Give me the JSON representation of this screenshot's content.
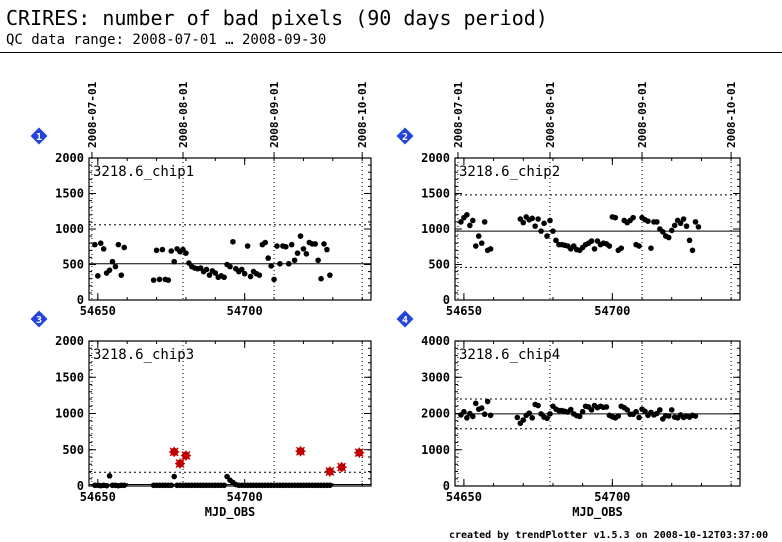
{
  "header": {
    "title": "CRIRES: number of bad pixels (90 days period)",
    "subtitle": "QC data range: 2008-07-01 … 2008-09-30"
  },
  "footer": {
    "credit": "created by trendPlotter v1.5.3 on 2008-10-12T03:37:00"
  },
  "colors": {
    "axis": "#000000",
    "point": "#000000",
    "outlier": "#c00000",
    "badge": "#2244dd"
  },
  "chart_data": [
    {
      "type": "scatter",
      "badge": "1",
      "label": "3218.6_chip1",
      "xlabel": "",
      "xlim": [
        54647,
        54743
      ],
      "ylim": [
        0,
        2000
      ],
      "yticks": [
        0,
        500,
        1000,
        1500,
        2000
      ],
      "xticks": [
        54650,
        54700
      ],
      "date_markers": [
        {
          "x": 54648,
          "label": "2008-07-01"
        },
        {
          "x": 54679,
          "label": "2008-08-01"
        },
        {
          "x": 54710,
          "label": "2008-09-01"
        },
        {
          "x": 54740,
          "label": "2008-10-01"
        }
      ],
      "mean": 510,
      "thresholds": [
        1060
      ],
      "points": [
        [
          54649,
          780
        ],
        [
          54650,
          340
        ],
        [
          54651,
          800
        ],
        [
          54652,
          720
        ],
        [
          54653,
          380
        ],
        [
          54654,
          420
        ],
        [
          54655,
          540
        ],
        [
          54656,
          470
        ],
        [
          54657,
          780
        ],
        [
          54658,
          350
        ],
        [
          54659,
          740
        ],
        [
          54669,
          280
        ],
        [
          54670,
          700
        ],
        [
          54671,
          290
        ],
        [
          54672,
          710
        ],
        [
          54673,
          290
        ],
        [
          54674,
          280
        ],
        [
          54675,
          690
        ],
        [
          54676,
          540
        ],
        [
          54677,
          720
        ],
        [
          54678,
          680
        ],
        [
          54679,
          710
        ],
        [
          54680,
          660
        ],
        [
          54681,
          520
        ],
        [
          54682,
          470
        ],
        [
          54683,
          450
        ],
        [
          54684,
          440
        ],
        [
          54685,
          450
        ],
        [
          54686,
          400
        ],
        [
          54687,
          430
        ],
        [
          54688,
          350
        ],
        [
          54689,
          410
        ],
        [
          54690,
          380
        ],
        [
          54691,
          320
        ],
        [
          54692,
          340
        ],
        [
          54693,
          320
        ],
        [
          54694,
          500
        ],
        [
          54695,
          470
        ],
        [
          54696,
          820
        ],
        [
          54697,
          440
        ],
        [
          54698,
          400
        ],
        [
          54699,
          430
        ],
        [
          54700,
          370
        ],
        [
          54701,
          760
        ],
        [
          54702,
          330
        ],
        [
          54703,
          400
        ],
        [
          54704,
          370
        ],
        [
          54705,
          350
        ],
        [
          54706,
          780
        ],
        [
          54707,
          810
        ],
        [
          54708,
          590
        ],
        [
          54709,
          480
        ],
        [
          54710,
          290
        ],
        [
          54711,
          760
        ],
        [
          54712,
          510
        ],
        [
          54713,
          760
        ],
        [
          54714,
          750
        ],
        [
          54715,
          510
        ],
        [
          54716,
          780
        ],
        [
          54717,
          560
        ],
        [
          54718,
          660
        ],
        [
          54719,
          900
        ],
        [
          54720,
          720
        ],
        [
          54721,
          650
        ],
        [
          54722,
          810
        ],
        [
          54723,
          790
        ],
        [
          54724,
          790
        ],
        [
          54725,
          560
        ],
        [
          54726,
          300
        ],
        [
          54727,
          790
        ],
        [
          54728,
          710
        ],
        [
          54729,
          350
        ]
      ],
      "outliers": []
    },
    {
      "type": "scatter",
      "badge": "2",
      "label": "3218.6_chip2",
      "xlabel": "",
      "xlim": [
        54647,
        54743
      ],
      "ylim": [
        0,
        2000
      ],
      "yticks": [
        0,
        500,
        1000,
        1500,
        2000
      ],
      "xticks": [
        54650,
        54700
      ],
      "date_markers": [
        {
          "x": 54648,
          "label": "2008-07-01"
        },
        {
          "x": 54679,
          "label": "2008-08-01"
        },
        {
          "x": 54710,
          "label": "2008-09-01"
        },
        {
          "x": 54740,
          "label": "2008-10-01"
        }
      ],
      "mean": 970,
      "thresholds": [
        1480,
        460
      ],
      "points": [
        [
          54649,
          1100
        ],
        [
          54650,
          1160
        ],
        [
          54651,
          1200
        ],
        [
          54652,
          1050
        ],
        [
          54653,
          1120
        ],
        [
          54654,
          760
        ],
        [
          54655,
          900
        ],
        [
          54656,
          800
        ],
        [
          54657,
          1100
        ],
        [
          54658,
          700
        ],
        [
          54659,
          720
        ],
        [
          54669,
          1140
        ],
        [
          54670,
          1090
        ],
        [
          54671,
          1170
        ],
        [
          54672,
          1130
        ],
        [
          54673,
          1150
        ],
        [
          54674,
          1040
        ],
        [
          54675,
          1140
        ],
        [
          54676,
          970
        ],
        [
          54677,
          1080
        ],
        [
          54678,
          900
        ],
        [
          54679,
          1120
        ],
        [
          54680,
          970
        ],
        [
          54681,
          840
        ],
        [
          54682,
          780
        ],
        [
          54683,
          780
        ],
        [
          54684,
          770
        ],
        [
          54685,
          760
        ],
        [
          54686,
          720
        ],
        [
          54687,
          760
        ],
        [
          54688,
          710
        ],
        [
          54689,
          700
        ],
        [
          54690,
          740
        ],
        [
          54691,
          780
        ],
        [
          54692,
          800
        ],
        [
          54693,
          830
        ],
        [
          54694,
          720
        ],
        [
          54695,
          830
        ],
        [
          54696,
          780
        ],
        [
          54697,
          800
        ],
        [
          54698,
          790
        ],
        [
          54699,
          760
        ],
        [
          54700,
          1170
        ],
        [
          54701,
          1160
        ],
        [
          54702,
          700
        ],
        [
          54703,
          730
        ],
        [
          54704,
          1120
        ],
        [
          54705,
          1090
        ],
        [
          54706,
          1120
        ],
        [
          54707,
          1160
        ],
        [
          54708,
          780
        ],
        [
          54709,
          760
        ],
        [
          54710,
          1160
        ],
        [
          54711,
          1130
        ],
        [
          54712,
          1110
        ],
        [
          54713,
          730
        ],
        [
          54714,
          1100
        ],
        [
          54715,
          1100
        ],
        [
          54716,
          1000
        ],
        [
          54717,
          960
        ],
        [
          54718,
          900
        ],
        [
          54719,
          880
        ],
        [
          54720,
          980
        ],
        [
          54721,
          1050
        ],
        [
          54722,
          1120
        ],
        [
          54723,
          1080
        ],
        [
          54724,
          1140
        ],
        [
          54725,
          1040
        ],
        [
          54726,
          840
        ],
        [
          54727,
          700
        ],
        [
          54728,
          1100
        ],
        [
          54729,
          1030
        ]
      ],
      "outliers": []
    },
    {
      "type": "scatter",
      "badge": "3",
      "label": "3218.6_chip3",
      "xlabel": "MJD_OBS",
      "xlim": [
        54647,
        54743
      ],
      "ylim": [
        0,
        2000
      ],
      "yticks": [
        0,
        500,
        1000,
        1500,
        2000
      ],
      "xticks": [
        54650,
        54700
      ],
      "date_markers": [
        {
          "x": 54648,
          "label": "2008-07-01"
        },
        {
          "x": 54679,
          "label": "2008-08-01"
        },
        {
          "x": 54710,
          "label": "2008-09-01"
        },
        {
          "x": 54740,
          "label": "2008-10-01"
        }
      ],
      "mean": 20,
      "thresholds": [
        190
      ],
      "points": [
        [
          54649,
          10
        ],
        [
          54650,
          10
        ],
        [
          54651,
          5
        ],
        [
          54652,
          10
        ],
        [
          54653,
          5
        ],
        [
          54654,
          140
        ],
        [
          54655,
          10
        ],
        [
          54656,
          10
        ],
        [
          54657,
          5
        ],
        [
          54658,
          10
        ],
        [
          54659,
          10
        ],
        [
          54669,
          10
        ],
        [
          54670,
          10
        ],
        [
          54671,
          10
        ],
        [
          54672,
          10
        ],
        [
          54673,
          10
        ],
        [
          54674,
          10
        ],
        [
          54675,
          10
        ],
        [
          54676,
          130
        ],
        [
          54677,
          10
        ],
        [
          54678,
          10
        ],
        [
          54679,
          10
        ],
        [
          54680,
          10
        ],
        [
          54681,
          10
        ],
        [
          54682,
          10
        ],
        [
          54683,
          10
        ],
        [
          54684,
          10
        ],
        [
          54685,
          10
        ],
        [
          54686,
          10
        ],
        [
          54687,
          10
        ],
        [
          54688,
          10
        ],
        [
          54689,
          10
        ],
        [
          54690,
          10
        ],
        [
          54691,
          10
        ],
        [
          54692,
          10
        ],
        [
          54693,
          10
        ],
        [
          54694,
          130
        ],
        [
          54695,
          80
        ],
        [
          54696,
          50
        ],
        [
          54697,
          20
        ],
        [
          54698,
          10
        ],
        [
          54699,
          10
        ],
        [
          54700,
          10
        ],
        [
          54701,
          10
        ],
        [
          54702,
          10
        ],
        [
          54703,
          10
        ],
        [
          54704,
          10
        ],
        [
          54705,
          10
        ],
        [
          54706,
          10
        ],
        [
          54707,
          10
        ],
        [
          54708,
          10
        ],
        [
          54709,
          10
        ],
        [
          54710,
          10
        ],
        [
          54711,
          10
        ],
        [
          54712,
          10
        ],
        [
          54713,
          10
        ],
        [
          54714,
          10
        ],
        [
          54715,
          10
        ],
        [
          54716,
          10
        ],
        [
          54717,
          10
        ],
        [
          54718,
          10
        ],
        [
          54719,
          10
        ],
        [
          54720,
          10
        ],
        [
          54721,
          10
        ],
        [
          54722,
          10
        ],
        [
          54723,
          10
        ],
        [
          54724,
          10
        ],
        [
          54725,
          10
        ],
        [
          54726,
          10
        ],
        [
          54727,
          10
        ],
        [
          54728,
          10
        ],
        [
          54729,
          10
        ]
      ],
      "outliers": [
        [
          54676,
          470
        ],
        [
          54678,
          310
        ],
        [
          54680,
          420
        ],
        [
          54719,
          480
        ],
        [
          54729,
          200
        ],
        [
          54733,
          260
        ],
        [
          54739,
          460
        ]
      ]
    },
    {
      "type": "scatter",
      "badge": "4",
      "label": "3218.6_chip4",
      "xlabel": "MJD_OBS",
      "xlim": [
        54647,
        54743
      ],
      "ylim": [
        0,
        4000
      ],
      "yticks": [
        0,
        1000,
        2000,
        3000,
        4000
      ],
      "xticks": [
        54650,
        54700
      ],
      "date_markers": [
        {
          "x": 54648,
          "label": "2008-07-01"
        },
        {
          "x": 54679,
          "label": "2008-08-01"
        },
        {
          "x": 54710,
          "label": "2008-09-01"
        },
        {
          "x": 54740,
          "label": "2008-10-01"
        }
      ],
      "mean": 1990,
      "thresholds": [
        2400,
        1580
      ],
      "points": [
        [
          54649,
          1960
        ],
        [
          54650,
          2050
        ],
        [
          54651,
          1880
        ],
        [
          54652,
          2000
        ],
        [
          54653,
          1920
        ],
        [
          54654,
          2280
        ],
        [
          54655,
          2120
        ],
        [
          54656,
          2150
        ],
        [
          54657,
          1980
        ],
        [
          54658,
          2330
        ],
        [
          54659,
          1950
        ],
        [
          54668,
          1890
        ],
        [
          54669,
          1730
        ],
        [
          54670,
          1820
        ],
        [
          54671,
          1950
        ],
        [
          54672,
          2010
        ],
        [
          54673,
          1880
        ],
        [
          54674,
          2250
        ],
        [
          54675,
          2220
        ],
        [
          54676,
          1990
        ],
        [
          54677,
          1900
        ],
        [
          54678,
          1870
        ],
        [
          54679,
          1990
        ],
        [
          54680,
          2200
        ],
        [
          54681,
          2120
        ],
        [
          54682,
          2080
        ],
        [
          54683,
          2080
        ],
        [
          54684,
          2060
        ],
        [
          54685,
          2040
        ],
        [
          54686,
          2110
        ],
        [
          54687,
          1990
        ],
        [
          54688,
          1940
        ],
        [
          54689,
          1920
        ],
        [
          54690,
          2050
        ],
        [
          54691,
          2200
        ],
        [
          54692,
          2180
        ],
        [
          54693,
          2100
        ],
        [
          54694,
          2220
        ],
        [
          54695,
          2160
        ],
        [
          54696,
          2200
        ],
        [
          54697,
          2170
        ],
        [
          54698,
          2180
        ],
        [
          54699,
          1950
        ],
        [
          54700,
          1910
        ],
        [
          54701,
          1880
        ],
        [
          54702,
          1930
        ],
        [
          54703,
          2200
        ],
        [
          54704,
          2160
        ],
        [
          54705,
          2100
        ],
        [
          54706,
          1980
        ],
        [
          54707,
          1980
        ],
        [
          54708,
          2050
        ],
        [
          54709,
          1890
        ],
        [
          54710,
          2120
        ],
        [
          54711,
          2060
        ],
        [
          54712,
          1950
        ],
        [
          54713,
          2030
        ],
        [
          54714,
          1960
        ],
        [
          54715,
          2000
        ],
        [
          54716,
          2100
        ],
        [
          54717,
          1850
        ],
        [
          54718,
          1940
        ],
        [
          54719,
          1930
        ],
        [
          54720,
          2100
        ],
        [
          54721,
          1900
        ],
        [
          54722,
          1880
        ],
        [
          54723,
          1960
        ],
        [
          54724,
          1890
        ],
        [
          54725,
          1930
        ],
        [
          54726,
          1900
        ],
        [
          54727,
          1950
        ],
        [
          54728,
          1930
        ]
      ],
      "outliers": []
    }
  ]
}
